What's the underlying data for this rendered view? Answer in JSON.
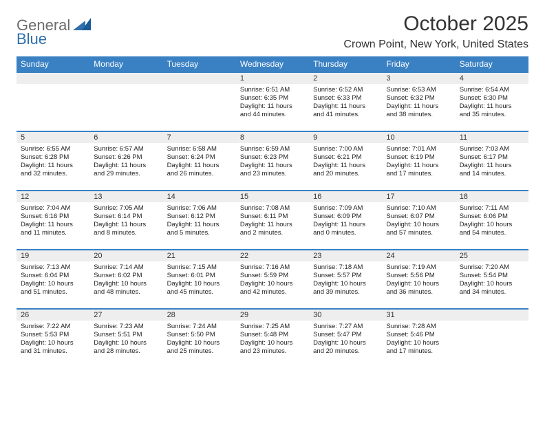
{
  "brand": {
    "general": "General",
    "blue": "Blue"
  },
  "title": "October 2025",
  "location": "Crown Point, New York, United States",
  "colors": {
    "header_bg": "#3a81c4",
    "header_text": "#ffffff",
    "daynum_bg": "#eeeeee",
    "border": "#3a81c4",
    "logo_gray": "#6b6b6b",
    "logo_blue": "#2f6fae",
    "text": "#333333"
  },
  "weekdays": [
    "Sunday",
    "Monday",
    "Tuesday",
    "Wednesday",
    "Thursday",
    "Friday",
    "Saturday"
  ],
  "weeks": [
    [
      null,
      null,
      null,
      {
        "n": "1",
        "sr": "Sunrise: 6:51 AM",
        "ss": "Sunset: 6:35 PM",
        "d1": "Daylight: 11 hours",
        "d2": "and 44 minutes."
      },
      {
        "n": "2",
        "sr": "Sunrise: 6:52 AM",
        "ss": "Sunset: 6:33 PM",
        "d1": "Daylight: 11 hours",
        "d2": "and 41 minutes."
      },
      {
        "n": "3",
        "sr": "Sunrise: 6:53 AM",
        "ss": "Sunset: 6:32 PM",
        "d1": "Daylight: 11 hours",
        "d2": "and 38 minutes."
      },
      {
        "n": "4",
        "sr": "Sunrise: 6:54 AM",
        "ss": "Sunset: 6:30 PM",
        "d1": "Daylight: 11 hours",
        "d2": "and 35 minutes."
      }
    ],
    [
      {
        "n": "5",
        "sr": "Sunrise: 6:55 AM",
        "ss": "Sunset: 6:28 PM",
        "d1": "Daylight: 11 hours",
        "d2": "and 32 minutes."
      },
      {
        "n": "6",
        "sr": "Sunrise: 6:57 AM",
        "ss": "Sunset: 6:26 PM",
        "d1": "Daylight: 11 hours",
        "d2": "and 29 minutes."
      },
      {
        "n": "7",
        "sr": "Sunrise: 6:58 AM",
        "ss": "Sunset: 6:24 PM",
        "d1": "Daylight: 11 hours",
        "d2": "and 26 minutes."
      },
      {
        "n": "8",
        "sr": "Sunrise: 6:59 AM",
        "ss": "Sunset: 6:23 PM",
        "d1": "Daylight: 11 hours",
        "d2": "and 23 minutes."
      },
      {
        "n": "9",
        "sr": "Sunrise: 7:00 AM",
        "ss": "Sunset: 6:21 PM",
        "d1": "Daylight: 11 hours",
        "d2": "and 20 minutes."
      },
      {
        "n": "10",
        "sr": "Sunrise: 7:01 AM",
        "ss": "Sunset: 6:19 PM",
        "d1": "Daylight: 11 hours",
        "d2": "and 17 minutes."
      },
      {
        "n": "11",
        "sr": "Sunrise: 7:03 AM",
        "ss": "Sunset: 6:17 PM",
        "d1": "Daylight: 11 hours",
        "d2": "and 14 minutes."
      }
    ],
    [
      {
        "n": "12",
        "sr": "Sunrise: 7:04 AM",
        "ss": "Sunset: 6:16 PM",
        "d1": "Daylight: 11 hours",
        "d2": "and 11 minutes."
      },
      {
        "n": "13",
        "sr": "Sunrise: 7:05 AM",
        "ss": "Sunset: 6:14 PM",
        "d1": "Daylight: 11 hours",
        "d2": "and 8 minutes."
      },
      {
        "n": "14",
        "sr": "Sunrise: 7:06 AM",
        "ss": "Sunset: 6:12 PM",
        "d1": "Daylight: 11 hours",
        "d2": "and 5 minutes."
      },
      {
        "n": "15",
        "sr": "Sunrise: 7:08 AM",
        "ss": "Sunset: 6:11 PM",
        "d1": "Daylight: 11 hours",
        "d2": "and 2 minutes."
      },
      {
        "n": "16",
        "sr": "Sunrise: 7:09 AM",
        "ss": "Sunset: 6:09 PM",
        "d1": "Daylight: 11 hours",
        "d2": "and 0 minutes."
      },
      {
        "n": "17",
        "sr": "Sunrise: 7:10 AM",
        "ss": "Sunset: 6:07 PM",
        "d1": "Daylight: 10 hours",
        "d2": "and 57 minutes."
      },
      {
        "n": "18",
        "sr": "Sunrise: 7:11 AM",
        "ss": "Sunset: 6:06 PM",
        "d1": "Daylight: 10 hours",
        "d2": "and 54 minutes."
      }
    ],
    [
      {
        "n": "19",
        "sr": "Sunrise: 7:13 AM",
        "ss": "Sunset: 6:04 PM",
        "d1": "Daylight: 10 hours",
        "d2": "and 51 minutes."
      },
      {
        "n": "20",
        "sr": "Sunrise: 7:14 AM",
        "ss": "Sunset: 6:02 PM",
        "d1": "Daylight: 10 hours",
        "d2": "and 48 minutes."
      },
      {
        "n": "21",
        "sr": "Sunrise: 7:15 AM",
        "ss": "Sunset: 6:01 PM",
        "d1": "Daylight: 10 hours",
        "d2": "and 45 minutes."
      },
      {
        "n": "22",
        "sr": "Sunrise: 7:16 AM",
        "ss": "Sunset: 5:59 PM",
        "d1": "Daylight: 10 hours",
        "d2": "and 42 minutes."
      },
      {
        "n": "23",
        "sr": "Sunrise: 7:18 AM",
        "ss": "Sunset: 5:57 PM",
        "d1": "Daylight: 10 hours",
        "d2": "and 39 minutes."
      },
      {
        "n": "24",
        "sr": "Sunrise: 7:19 AM",
        "ss": "Sunset: 5:56 PM",
        "d1": "Daylight: 10 hours",
        "d2": "and 36 minutes."
      },
      {
        "n": "25",
        "sr": "Sunrise: 7:20 AM",
        "ss": "Sunset: 5:54 PM",
        "d1": "Daylight: 10 hours",
        "d2": "and 34 minutes."
      }
    ],
    [
      {
        "n": "26",
        "sr": "Sunrise: 7:22 AM",
        "ss": "Sunset: 5:53 PM",
        "d1": "Daylight: 10 hours",
        "d2": "and 31 minutes."
      },
      {
        "n": "27",
        "sr": "Sunrise: 7:23 AM",
        "ss": "Sunset: 5:51 PM",
        "d1": "Daylight: 10 hours",
        "d2": "and 28 minutes."
      },
      {
        "n": "28",
        "sr": "Sunrise: 7:24 AM",
        "ss": "Sunset: 5:50 PM",
        "d1": "Daylight: 10 hours",
        "d2": "and 25 minutes."
      },
      {
        "n": "29",
        "sr": "Sunrise: 7:25 AM",
        "ss": "Sunset: 5:48 PM",
        "d1": "Daylight: 10 hours",
        "d2": "and 23 minutes."
      },
      {
        "n": "30",
        "sr": "Sunrise: 7:27 AM",
        "ss": "Sunset: 5:47 PM",
        "d1": "Daylight: 10 hours",
        "d2": "and 20 minutes."
      },
      {
        "n": "31",
        "sr": "Sunrise: 7:28 AM",
        "ss": "Sunset: 5:46 PM",
        "d1": "Daylight: 10 hours",
        "d2": "and 17 minutes."
      },
      null
    ]
  ]
}
